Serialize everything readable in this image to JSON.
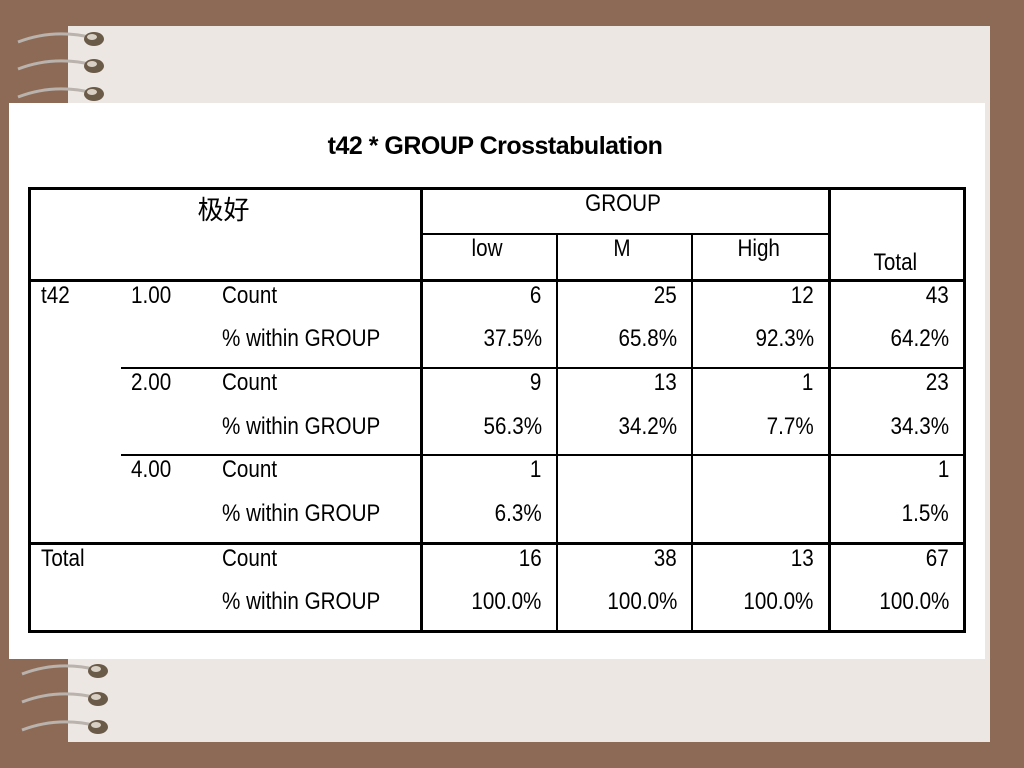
{
  "table": {
    "title": "t42 * GROUP Crosstabulation",
    "corner_label": "极好",
    "group_header": "GROUP",
    "columns": [
      "low",
      "M",
      "High"
    ],
    "total_header": "Total",
    "row_var": "t42",
    "stat_labels": {
      "count": "Count",
      "pct": "% within GROUP"
    },
    "rows": [
      {
        "level": "1.00",
        "count": [
          "6",
          "25",
          "12",
          "43"
        ],
        "pct": [
          "37.5%",
          "65.8%",
          "92.3%",
          "64.2%"
        ]
      },
      {
        "level": "2.00",
        "count": [
          "9",
          "13",
          "1",
          "23"
        ],
        "pct": [
          "56.3%",
          "34.2%",
          "7.7%",
          "34.3%"
        ]
      },
      {
        "level": "4.00",
        "count": [
          "1",
          "",
          "",
          "1"
        ],
        "pct": [
          "6.3%",
          "",
          "",
          "1.5%"
        ]
      }
    ],
    "total_row": {
      "label": "Total",
      "count": [
        "16",
        "38",
        "13",
        "67"
      ],
      "pct": [
        "100.0%",
        "100.0%",
        "100.0%",
        "100.0%"
      ]
    }
  }
}
